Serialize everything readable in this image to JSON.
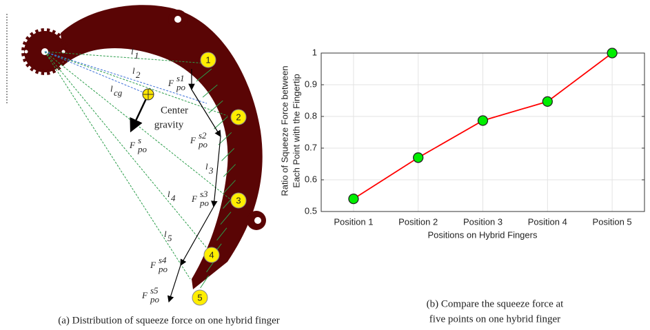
{
  "chart_data": {
    "type": "line",
    "categories": [
      "Position 1",
      "Position 2",
      "Position 3",
      "Position 4",
      "Position 5"
    ],
    "values": [
      0.54,
      0.67,
      0.787,
      0.847,
      1
    ],
    "color": "#ff0000",
    "marker_color": "#00ee00",
    "ylim": [
      0.5,
      1
    ],
    "yticks": [
      0.5,
      0.6,
      0.7,
      0.8,
      0.9,
      1
    ],
    "grid": true,
    "x_label": "Positions on Hybrid Fingers",
    "y_label": [
      "Ratio of Squeeze Force between",
      "Each Point with the Fingertip"
    ],
    "caption": [
      "(b) Compare the squeeze force at",
      "five points on one hybrid finger"
    ]
  },
  "diagram": {
    "caption": "(a) Distribution of squeeze force on one hybrid finger",
    "points": [
      "1",
      "2",
      "3",
      "4",
      "5"
    ],
    "lengths": [
      {
        "base": "l",
        "sub": "1"
      },
      {
        "base": "l",
        "sub": "2"
      },
      {
        "base": "l",
        "sub": "3"
      },
      {
        "base": "l",
        "sub": "4"
      },
      {
        "base": "l",
        "sub": "5"
      }
    ],
    "cg_length": {
      "base": "l",
      "sub": "cg"
    },
    "center_label": [
      "Center",
      "gravity"
    ],
    "forces": [
      {
        "base": "F",
        "sub": "po",
        "sup": "s1"
      },
      {
        "base": "F",
        "sub": "po",
        "sup": "s2"
      },
      {
        "base": "F",
        "sub": "po",
        "sup": "s3"
      },
      {
        "base": "F",
        "sub": "po",
        "sup": "s4"
      },
      {
        "base": "F",
        "sub": "po",
        "sup": "s5"
      }
    ],
    "cg_force": {
      "base": "F",
      "sub": "po",
      "sup": "s"
    }
  }
}
